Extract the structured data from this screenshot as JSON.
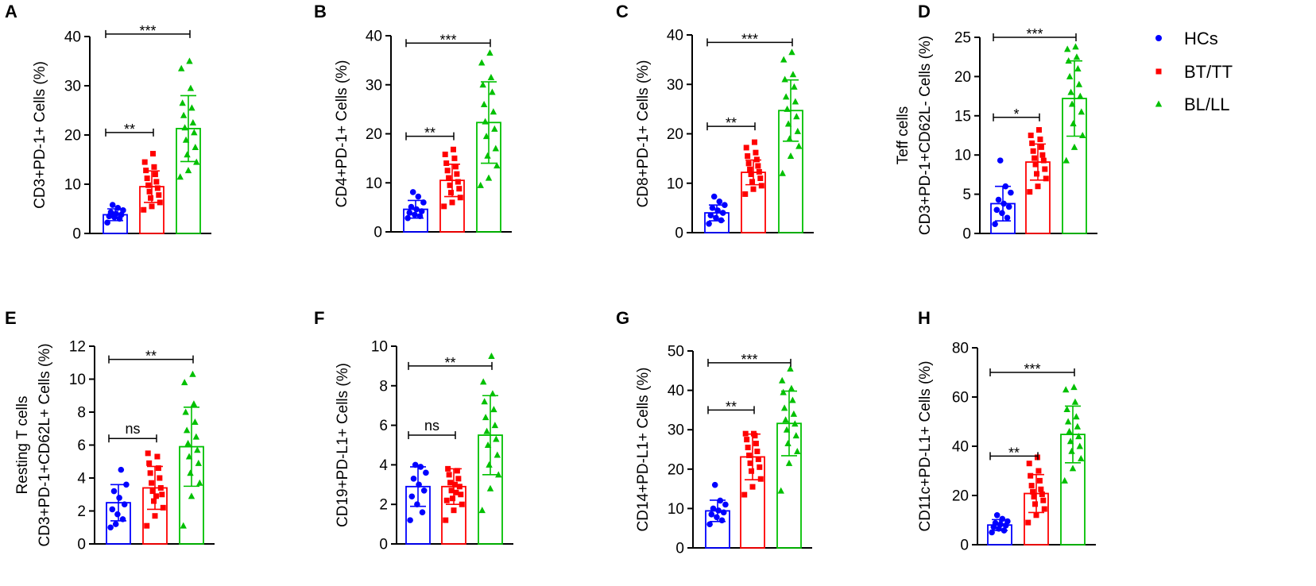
{
  "legend": [
    {
      "name": "HCs",
      "color": "#0000ff",
      "marker": "circle"
    },
    {
      "name": "BT/TT",
      "color": "#ff0000",
      "marker": "square"
    },
    {
      "name": "BL/LL",
      "color": "#00c000",
      "marker": "triangle"
    }
  ],
  "chart_data": [
    {
      "type": "bar",
      "panel": "A",
      "ylabel": [
        "CD3+PD-1+ Cells (%)"
      ],
      "ylim": [
        0,
        40
      ],
      "yticks": [
        0,
        10,
        20,
        30,
        40
      ],
      "categories": [
        "HCs",
        "BT/TT",
        "BL/LL"
      ],
      "series": [
        {
          "name": "HCs",
          "mean": 3.8,
          "sd": 1.2,
          "points": [
            2.2,
            3.0,
            3.3,
            3.5,
            3.8,
            4.0,
            4.3,
            4.7,
            5.2,
            5.8
          ]
        },
        {
          "name": "BT/TT",
          "mean": 9.5,
          "sd": 3.2,
          "points": [
            4.8,
            5.5,
            6.3,
            7.2,
            7.8,
            8.5,
            9.2,
            9.8,
            10.5,
            11.2,
            12.0,
            12.8,
            13.5,
            14.5,
            16.2
          ]
        },
        {
          "name": "BL/LL",
          "mean": 21.3,
          "sd": 6.7,
          "points": [
            11.5,
            12.8,
            14.5,
            16.0,
            17.5,
            19.0,
            20.5,
            21.5,
            22.5,
            24.0,
            25.5,
            26.5,
            29.5,
            33.5,
            35.0
          ]
        }
      ],
      "comparisons": [
        {
          "label": "**",
          "from": "HCs",
          "to": "BT/TT",
          "y": 20.5
        },
        {
          "label": "***",
          "from": "HCs",
          "to": "BL/LL",
          "y": 40.5
        }
      ]
    },
    {
      "type": "bar",
      "panel": "B",
      "ylabel": [
        "CD4+PD-1+ Cells (%)"
      ],
      "ylim": [
        0,
        40
      ],
      "yticks": [
        0,
        10,
        20,
        30,
        40
      ],
      "categories": [
        "HCs",
        "BT/TT",
        "BL/LL"
      ],
      "series": [
        {
          "name": "HCs",
          "mean": 4.6,
          "sd": 1.8,
          "points": [
            2.8,
            3.2,
            3.5,
            3.9,
            4.2,
            4.6,
            5.1,
            6.0,
            7.2,
            8.1
          ]
        },
        {
          "name": "BT/TT",
          "mean": 10.5,
          "sd": 3.3,
          "points": [
            5.2,
            6.0,
            7.0,
            8.0,
            8.8,
            9.5,
            10.2,
            11.0,
            11.8,
            12.5,
            13.3,
            14.0,
            15.0,
            15.8,
            16.8
          ]
        },
        {
          "name": "BL/LL",
          "mean": 22.3,
          "sd": 8.3,
          "points": [
            9.5,
            11.0,
            13.5,
            15.5,
            17.0,
            19.5,
            21.0,
            22.5,
            24.5,
            26.0,
            28.5,
            30.0,
            31.5,
            34.5,
            36.5
          ]
        }
      ],
      "comparisons": [
        {
          "label": "**",
          "from": "HCs",
          "to": "BT/TT",
          "y": 19.5
        },
        {
          "label": "***",
          "from": "HCs",
          "to": "BL/LL",
          "y": 38.5
        }
      ]
    },
    {
      "type": "bar",
      "panel": "C",
      "ylabel": [
        "CD8+PD-1+ Cells (%)"
      ],
      "ylim": [
        0,
        40
      ],
      "yticks": [
        0,
        10,
        20,
        30,
        40
      ],
      "categories": [
        "HCs",
        "BT/TT",
        "BL/LL"
      ],
      "series": [
        {
          "name": "HCs",
          "mean": 4.0,
          "sd": 1.6,
          "points": [
            1.8,
            2.5,
            3.0,
            3.5,
            4.0,
            4.5,
            5.0,
            5.6,
            6.3,
            7.3
          ]
        },
        {
          "name": "BT/TT",
          "mean": 12.2,
          "sd": 2.5,
          "points": [
            7.8,
            8.8,
            9.5,
            10.3,
            11.0,
            11.8,
            12.3,
            12.8,
            13.5,
            14.0,
            14.8,
            15.5,
            16.2,
            17.2,
            18.3
          ]
        },
        {
          "name": "BL/LL",
          "mean": 24.7,
          "sd": 6.2,
          "points": [
            12.0,
            15.5,
            17.5,
            19.0,
            20.5,
            22.0,
            23.5,
            25.0,
            26.5,
            27.5,
            29.5,
            31.0,
            32.0,
            35.0,
            36.5
          ]
        }
      ],
      "comparisons": [
        {
          "label": "**",
          "from": "HCs",
          "to": "BT/TT",
          "y": 21.5
        },
        {
          "label": "***",
          "from": "HCs",
          "to": "BL/LL",
          "y": 38.5
        }
      ]
    },
    {
      "type": "bar",
      "panel": "D",
      "ylabel": [
        "Teff cells",
        "CD3+PD-1+CD62L- Cells (%)"
      ],
      "ylim": [
        0,
        25
      ],
      "yticks": [
        0,
        5,
        10,
        15,
        20,
        25
      ],
      "categories": [
        "HCs",
        "BT/TT",
        "BL/LL"
      ],
      "series": [
        {
          "name": "HCs",
          "mean": 3.8,
          "sd": 2.2,
          "points": [
            1.2,
            2.0,
            2.6,
            3.0,
            3.4,
            3.8,
            4.3,
            5.2,
            6.0,
            9.3
          ]
        },
        {
          "name": "BT/TT",
          "mean": 9.1,
          "sd": 2.3,
          "points": [
            5.3,
            6.0,
            7.0,
            7.6,
            8.2,
            8.8,
            9.3,
            9.6,
            10.0,
            10.5,
            11.0,
            11.5,
            12.0,
            12.5,
            13.2
          ]
        },
        {
          "name": "BL/LL",
          "mean": 17.2,
          "sd": 4.8,
          "points": [
            9.3,
            11.0,
            12.5,
            14.0,
            15.5,
            16.5,
            17.5,
            18.0,
            19.0,
            20.0,
            21.0,
            22.0,
            22.5,
            23.5,
            23.8
          ]
        }
      ],
      "comparisons": [
        {
          "label": "*",
          "from": "HCs",
          "to": "BT/TT",
          "y": 14.8
        },
        {
          "label": "***",
          "from": "HCs",
          "to": "BL/LL",
          "y": 25.0
        }
      ]
    },
    {
      "type": "bar",
      "panel": "E",
      "ylabel": [
        "Resting T cells",
        "CD3+PD-1+CD62L+ Cells (%)"
      ],
      "ylim": [
        0,
        12
      ],
      "yticks": [
        0,
        2,
        4,
        6,
        8,
        10,
        12
      ],
      "categories": [
        "HCs",
        "BT/TT",
        "BL/LL"
      ],
      "series": [
        {
          "name": "HCs",
          "mean": 2.5,
          "sd": 1.1,
          "points": [
            1.0,
            1.5,
            1.8,
            2.1,
            2.4,
            2.8,
            3.2,
            3.6,
            4.5,
            1.2
          ]
        },
        {
          "name": "BT/TT",
          "mean": 3.4,
          "sd": 1.3,
          "points": [
            1.1,
            1.7,
            2.2,
            2.6,
            3.0,
            3.2,
            3.4,
            3.7,
            4.0,
            4.3,
            4.6,
            4.9,
            5.3,
            5.5,
            2.9
          ]
        },
        {
          "name": "BL/LL",
          "mean": 5.9,
          "sd": 2.4,
          "points": [
            1.1,
            2.9,
            3.7,
            4.3,
            4.9,
            5.3,
            5.7,
            6.1,
            6.5,
            6.9,
            7.4,
            8.0,
            8.5,
            9.8,
            10.3
          ]
        }
      ],
      "comparisons": [
        {
          "label": "ns",
          "from": "HCs",
          "to": "BT/TT",
          "y": 6.4
        },
        {
          "label": "**",
          "from": "HCs",
          "to": "BL/LL",
          "y": 11.2
        }
      ]
    },
    {
      "type": "bar",
      "panel": "F",
      "ylabel": [
        "CD19+PD-L1+ Cells (%)"
      ],
      "ylim": [
        0,
        10
      ],
      "yticks": [
        0,
        2,
        4,
        6,
        8,
        10
      ],
      "categories": [
        "HCs",
        "BT/TT",
        "BL/LL"
      ],
      "series": [
        {
          "name": "HCs",
          "mean": 2.9,
          "sd": 1.0,
          "points": [
            1.2,
            1.6,
            2.0,
            2.4,
            2.7,
            3.0,
            3.3,
            3.6,
            3.9,
            4.0
          ]
        },
        {
          "name": "BT/TT",
          "mean": 2.9,
          "sd": 0.9,
          "points": [
            1.2,
            1.7,
            2.0,
            2.3,
            2.5,
            2.7,
            2.9,
            3.1,
            3.3,
            3.5,
            3.7,
            3.8,
            2.6,
            2.2,
            3.0
          ]
        },
        {
          "name": "BL/LL",
          "mean": 5.5,
          "sd": 2.0,
          "points": [
            1.7,
            2.8,
            3.5,
            4.0,
            4.5,
            5.0,
            5.3,
            5.7,
            6.0,
            6.4,
            6.8,
            7.2,
            7.6,
            8.2,
            9.5
          ]
        }
      ],
      "comparisons": [
        {
          "label": "ns",
          "from": "HCs",
          "to": "BT/TT",
          "y": 5.5
        },
        {
          "label": "**",
          "from": "HCs",
          "to": "BL/LL",
          "y": 9.0
        }
      ]
    },
    {
      "type": "bar",
      "panel": "G",
      "ylabel": [
        "CD14+PD-L1+ Cells (%)"
      ],
      "ylim": [
        0,
        50
      ],
      "yticks": [
        0,
        10,
        20,
        30,
        40,
        50
      ],
      "categories": [
        "HCs",
        "BT/TT",
        "BL/LL"
      ],
      "series": [
        {
          "name": "HCs",
          "mean": 9.4,
          "sd": 2.7,
          "points": [
            6.0,
            7.0,
            7.8,
            8.5,
            9.0,
            9.5,
            10.0,
            11.0,
            12.0,
            16.0
          ]
        },
        {
          "name": "BT/TT",
          "mean": 23.1,
          "sd": 5.8,
          "points": [
            13.5,
            15.5,
            17.5,
            19.5,
            20.5,
            21.5,
            22.5,
            23.5,
            24.5,
            25.5,
            26.5,
            27.5,
            28.5,
            29.0,
            29.0
          ]
        },
        {
          "name": "BL/LL",
          "mean": 31.6,
          "sd": 8.2,
          "points": [
            14.5,
            21.5,
            24.5,
            26.5,
            28.5,
            30.0,
            31.5,
            32.5,
            34.0,
            35.5,
            37.5,
            39.5,
            40.5,
            42.5,
            45.5
          ]
        }
      ],
      "comparisons": [
        {
          "label": "**",
          "from": "HCs",
          "to": "BT/TT",
          "y": 35.0
        },
        {
          "label": "***",
          "from": "HCs",
          "to": "BL/LL",
          "y": 47.0
        }
      ]
    },
    {
      "type": "bar",
      "panel": "H",
      "ylabel": [
        "CD11c+PD-L1+ Cells (%)"
      ],
      "ylim": [
        0,
        80
      ],
      "yticks": [
        0,
        20,
        40,
        60,
        80
      ],
      "categories": [
        "HCs",
        "BT/TT",
        "BL/LL"
      ],
      "series": [
        {
          "name": "HCs",
          "mean": 8.0,
          "sd": 2.2,
          "points": [
            5.0,
            5.8,
            6.5,
            7.2,
            7.8,
            8.3,
            8.8,
            9.5,
            10.5,
            12.0
          ]
        },
        {
          "name": "BT/TT",
          "mean": 20.8,
          "sd": 7.7,
          "points": [
            9.0,
            12.0,
            14.5,
            16.5,
            18.0,
            19.5,
            20.5,
            21.5,
            22.5,
            24.0,
            26.0,
            28.0,
            30.0,
            33.0,
            35.5
          ]
        },
        {
          "name": "BL/LL",
          "mean": 44.8,
          "sd": 11.5,
          "points": [
            26.0,
            31.0,
            35.0,
            38.0,
            40.0,
            42.0,
            44.0,
            46.0,
            48.0,
            50.0,
            52.0,
            55.0,
            58.0,
            63.0,
            64.0
          ]
        }
      ],
      "comparisons": [
        {
          "label": "**",
          "from": "HCs",
          "to": "BT/TT",
          "y": 36.0
        },
        {
          "label": "***",
          "from": "HCs",
          "to": "BL/LL",
          "y": 70.0
        }
      ]
    }
  ]
}
